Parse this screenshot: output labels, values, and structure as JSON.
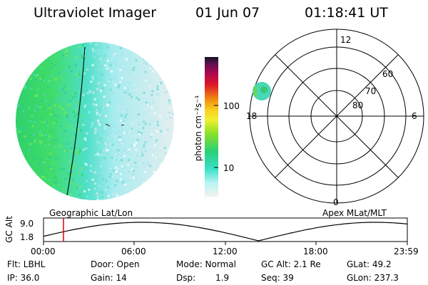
{
  "header": {
    "instrument": "Ultraviolet Imager",
    "date": "01 Jun 07",
    "time": "01:18:41 UT"
  },
  "colorbar": {
    "unit_label": "photon cm⁻²s⁻¹",
    "tick_labels": [
      "100",
      "10"
    ],
    "scale": "log"
  },
  "polar_plot": {
    "mlt_labels": [
      "12",
      "18",
      "6",
      "0"
    ],
    "mlat_labels": [
      "60",
      "70",
      "80"
    ],
    "caption": "Apex MLat/MLT"
  },
  "image_panel": {
    "caption": "Geographic Lat/Lon"
  },
  "altitude_panel": {
    "axis_label": "GC Alt",
    "y_ticks": [
      "9.0",
      "1.8"
    ],
    "x_ticks": [
      "00:00",
      "06:00",
      "12:00",
      "18:00",
      "23:59"
    ],
    "marker_color": "#dd0000"
  },
  "status": {
    "flt": "Flt: LBHL",
    "ip": "IP: 36.0",
    "door": "Door: Open",
    "gain": "Gain: 14",
    "mode": "Mode: Normal",
    "dsp_label": "Dsp:",
    "dsp_value": "1.9",
    "gc_alt": "GC Alt: 2.1 Re",
    "seq": "Seq: 39",
    "glat": "GLat:  49.2",
    "glon": "GLon: 237.3"
  }
}
